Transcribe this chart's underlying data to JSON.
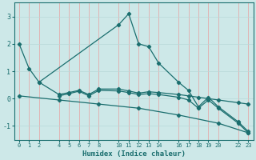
{
  "xlabel": "Humidex (Indice chaleur)",
  "bg_color": "#cde8e8",
  "grid_color_v": "#e8a0a0",
  "grid_color_h": "#b8d8d8",
  "line_color": "#1a6e6e",
  "xticks": [
    0,
    1,
    2,
    4,
    5,
    6,
    7,
    8,
    10,
    11,
    12,
    13,
    14,
    16,
    17,
    18,
    19,
    20,
    22,
    23
  ],
  "ylim": [
    -1.5,
    3.5
  ],
  "xlim": [
    -0.5,
    23.5
  ],
  "yticks": [
    -1,
    0,
    1,
    2,
    3
  ],
  "lines": [
    {
      "x": [
        0,
        1,
        2,
        10,
        11,
        12,
        13,
        14,
        16,
        17,
        18,
        19,
        20,
        22,
        23
      ],
      "y": [
        2.0,
        1.1,
        0.6,
        2.7,
        3.1,
        2.0,
        1.9,
        1.3,
        0.6,
        0.3,
        -0.3,
        0.05,
        -0.3,
        -0.85,
        -1.2
      ]
    },
    {
      "x": [
        2,
        4,
        5,
        6,
        7,
        8,
        10,
        11,
        12,
        13,
        14,
        16,
        17,
        18,
        19,
        20,
        22,
        23
      ],
      "y": [
        0.6,
        0.15,
        0.22,
        0.3,
        0.15,
        0.35,
        0.35,
        0.28,
        0.2,
        0.25,
        0.22,
        0.15,
        0.1,
        0.05,
        0.0,
        -0.05,
        -0.15,
        -0.2
      ]
    },
    {
      "x": [
        4,
        5,
        6,
        7,
        8,
        10,
        11,
        12,
        13,
        14,
        16,
        17,
        18,
        19,
        20,
        22,
        23
      ],
      "y": [
        0.1,
        0.18,
        0.27,
        0.1,
        0.3,
        0.28,
        0.22,
        0.15,
        0.18,
        0.15,
        0.05,
        -0.05,
        -0.35,
        -0.05,
        -0.35,
        -0.9,
        -1.25
      ]
    },
    {
      "x": [
        0,
        4,
        8,
        12,
        16,
        20,
        23
      ],
      "y": [
        0.1,
        -0.05,
        -0.2,
        -0.35,
        -0.6,
        -0.9,
        -1.25
      ]
    }
  ]
}
